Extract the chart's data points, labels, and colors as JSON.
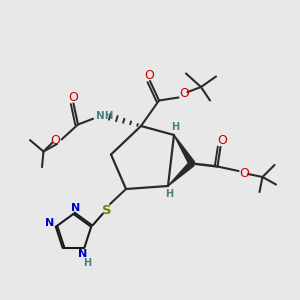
{
  "bg_color": "#e8e8e8",
  "bond_color": "#2a2a2a",
  "red": "#cc0000",
  "blue": "#0000cc",
  "teal": "#4a8080",
  "yg": "#808000",
  "dark": "#1a1a1a",
  "fig_w": 3.0,
  "fig_h": 3.0,
  "dpi": 100,
  "xlim": [
    0,
    10
  ],
  "ylim": [
    0,
    10
  ]
}
